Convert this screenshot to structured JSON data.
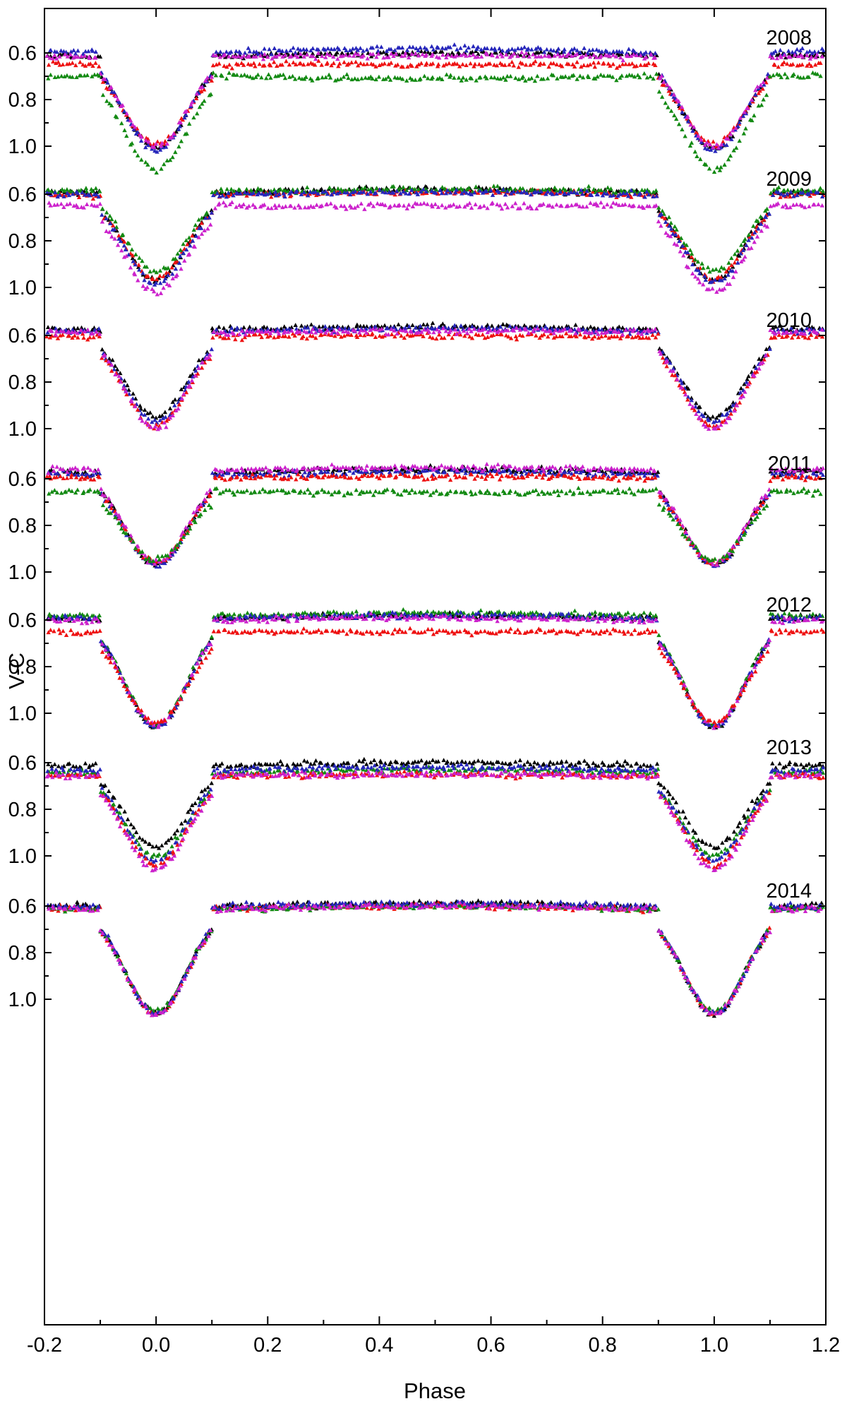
{
  "chart_data": {
    "type": "scatter",
    "title": "",
    "xlabel": "Phase",
    "ylabel": "V-C",
    "xlim": [
      -0.2,
      1.2
    ],
    "x_ticks": [
      "-0.2",
      "0.0",
      "0.2",
      "0.4",
      "0.6",
      "0.8",
      "1.0",
      "1.2"
    ],
    "y_tick_labels": [
      "0.6",
      "0.8",
      "1.0"
    ],
    "y_inverted": true,
    "grid": false,
    "marker": "triangle",
    "panel_range": [
      0.48,
      1.22
    ],
    "colors": {
      "black": "#000000",
      "red": "#ee1111",
      "green": "#138a13",
      "blue": "#2626bb",
      "magenta": "#cc22cc"
    },
    "panels": [
      {
        "year": "2008",
        "series": [
          {
            "color": "black",
            "base": 0.62,
            "depth": 1.01,
            "skew": 0.0
          },
          {
            "color": "red",
            "base": 0.65,
            "depth": 0.99,
            "skew": 0.02
          },
          {
            "color": "blue",
            "base": 0.61,
            "depth": 1.02,
            "skew": -0.01
          },
          {
            "color": "magenta",
            "base": 0.62,
            "depth": 1.0,
            "skew": 0.01
          },
          {
            "color": "green",
            "base": 0.69,
            "depth": 1.1,
            "skew": 0.04
          }
        ]
      },
      {
        "year": "2009",
        "series": [
          {
            "color": "black",
            "base": 0.6,
            "depth": 0.97,
            "skew": 0.0
          },
          {
            "color": "red",
            "base": 0.61,
            "depth": 0.96,
            "skew": 0.0
          },
          {
            "color": "green",
            "base": 0.59,
            "depth": 0.93,
            "skew": 0.01
          },
          {
            "color": "blue",
            "base": 0.61,
            "depth": 0.98,
            "skew": 0.0
          },
          {
            "color": "magenta",
            "base": 0.65,
            "depth": 1.02,
            "skew": 0.02
          }
        ]
      },
      {
        "year": "2010",
        "series": [
          {
            "color": "black",
            "base": 0.58,
            "depth": 0.95,
            "skew": 0.0
          },
          {
            "color": "blue",
            "base": 0.59,
            "depth": 0.97,
            "skew": 0.0
          },
          {
            "color": "red",
            "base": 0.61,
            "depth": 0.99,
            "skew": 0.01
          },
          {
            "color": "magenta",
            "base": 0.59,
            "depth": 1.0,
            "skew": 0.01
          }
        ]
      },
      {
        "year": "2011",
        "series": [
          {
            "color": "black",
            "base": 0.58,
            "depth": 0.97,
            "skew": 0.0
          },
          {
            "color": "blue",
            "base": 0.59,
            "depth": 0.97,
            "skew": 0.0
          },
          {
            "color": "red",
            "base": 0.6,
            "depth": 0.96,
            "skew": 0.01
          },
          {
            "color": "magenta",
            "base": 0.57,
            "depth": 0.96,
            "skew": 0.0
          },
          {
            "color": "green",
            "base": 0.65,
            "depth": 0.95,
            "skew": 0.03
          }
        ]
      },
      {
        "year": "2012",
        "series": [
          {
            "color": "black",
            "base": 0.6,
            "depth": 1.06,
            "skew": 0.0
          },
          {
            "color": "green",
            "base": 0.59,
            "depth": 1.05,
            "skew": 0.0
          },
          {
            "color": "blue",
            "base": 0.6,
            "depth": 1.06,
            "skew": 0.0
          },
          {
            "color": "magenta",
            "base": 0.61,
            "depth": 1.05,
            "skew": 0.0
          },
          {
            "color": "red",
            "base": 0.65,
            "depth": 1.04,
            "skew": 0.02
          }
        ]
      },
      {
        "year": "2013",
        "series": [
          {
            "color": "black",
            "base": 0.62,
            "depth": 0.96,
            "skew": 0.0
          },
          {
            "color": "green",
            "base": 0.65,
            "depth": 1.0,
            "skew": 0.0
          },
          {
            "color": "blue",
            "base": 0.64,
            "depth": 1.02,
            "skew": 0.0
          },
          {
            "color": "red",
            "base": 0.66,
            "depth": 1.04,
            "skew": 0.01
          },
          {
            "color": "magenta",
            "base": 0.66,
            "depth": 1.06,
            "skew": 0.01
          }
        ]
      },
      {
        "year": "2014",
        "series": [
          {
            "color": "black",
            "base": 0.61,
            "depth": 1.06,
            "skew": 0.0
          },
          {
            "color": "red",
            "base": 0.62,
            "depth": 1.06,
            "skew": 0.0
          },
          {
            "color": "green",
            "base": 0.62,
            "depth": 1.05,
            "skew": 0.0
          },
          {
            "color": "blue",
            "base": 0.61,
            "depth": 1.06,
            "skew": 0.0
          },
          {
            "color": "magenta",
            "base": 0.62,
            "depth": 1.06,
            "skew": 0.0
          }
        ]
      }
    ]
  }
}
